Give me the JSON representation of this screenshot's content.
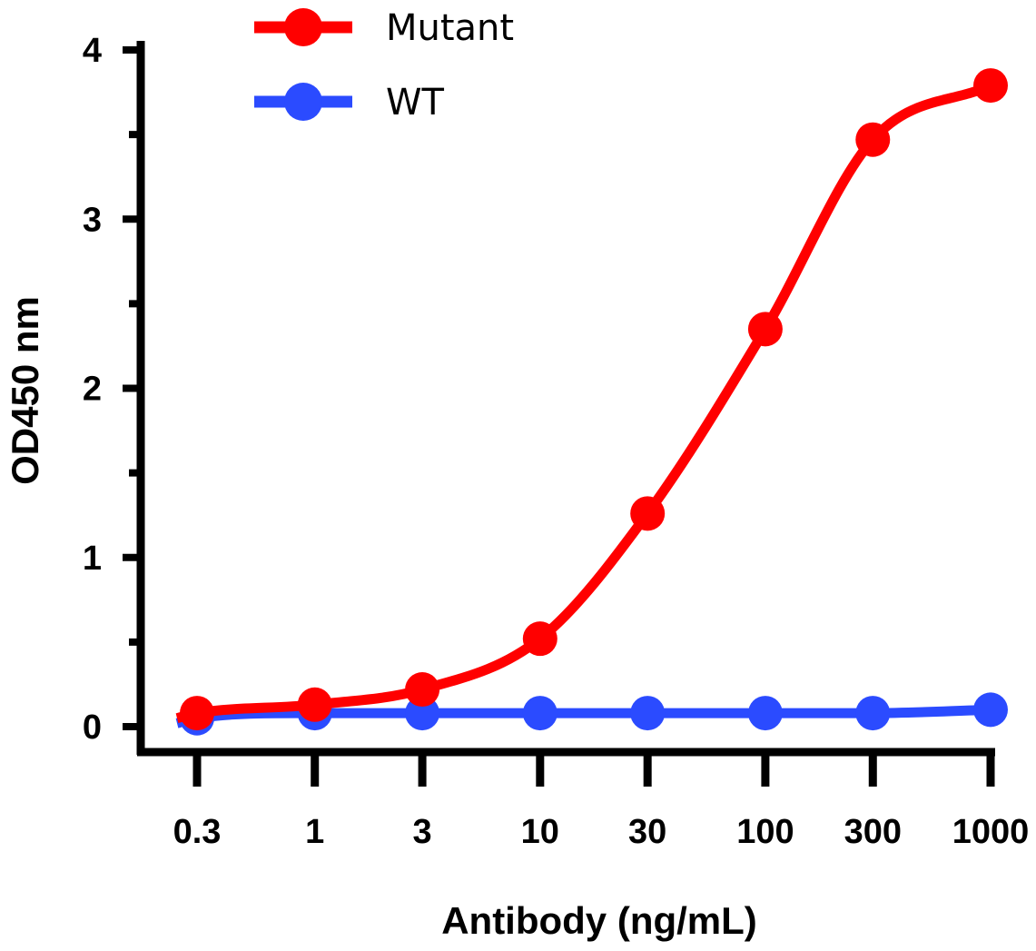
{
  "chart_data": {
    "type": "line",
    "title": "",
    "xlabel": "Antibody (ng/mL)",
    "ylabel": "OD450 nm",
    "x_scale": "log",
    "categories": [
      "0.3",
      "1",
      "3",
      "10",
      "30",
      "100",
      "300",
      "1000"
    ],
    "x": [
      0.3,
      1,
      3,
      10,
      30,
      100,
      300,
      1000
    ],
    "ylim": [
      0,
      4
    ],
    "yticks": [
      "0",
      "1",
      "2",
      "3",
      "4"
    ],
    "y_minor_step": 0.5,
    "grid": false,
    "legend_position": "top-left",
    "series": [
      {
        "name": "Mutant",
        "color": "#ff0000",
        "values": [
          0.08,
          0.13,
          0.22,
          0.52,
          1.26,
          2.35,
          3.47,
          3.79
        ]
      },
      {
        "name": "WT",
        "color": "#2b4bff",
        "values": [
          0.05,
          0.08,
          0.08,
          0.08,
          0.08,
          0.08,
          0.08,
          0.1
        ]
      }
    ]
  }
}
